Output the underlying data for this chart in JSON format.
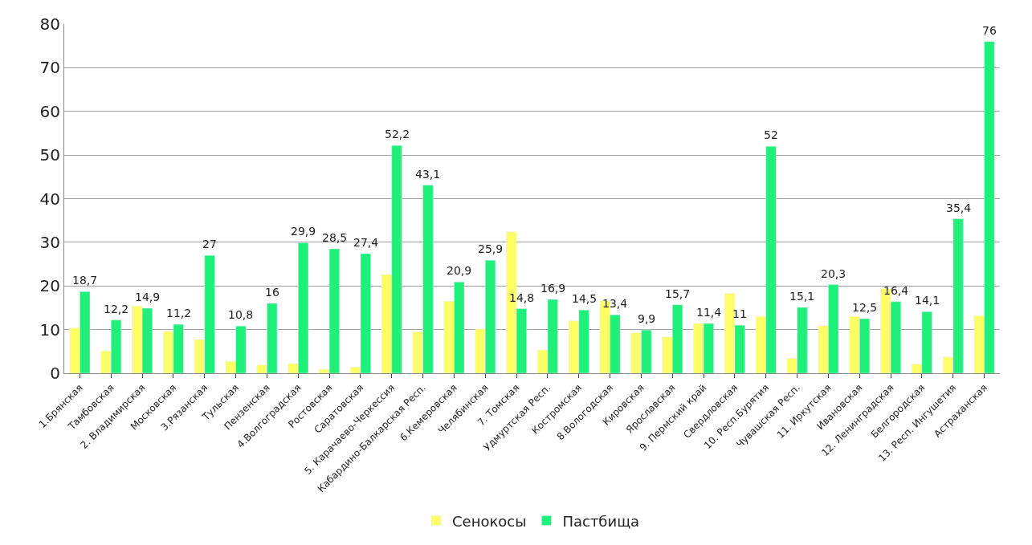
{
  "chart_data": {
    "type": "bar",
    "categories": [
      "1.Брянская",
      "Тамбовская",
      "2. Владимирская",
      "Московская",
      "3.Рязанская",
      "Тульская",
      "Пензенская",
      "4.Волгоградская",
      "Ростовская",
      "Саратовская",
      "5. Карачаево-Черкессия",
      "Кабардино-Балкарская Респ.",
      "6.Кемеровская",
      "Челябинская",
      "7. Томская",
      "Удмуртская Респ.",
      "Костромская",
      "8.Вологодская",
      "Кировская",
      "Ярославская",
      "9. Пермский край",
      "Свердловская",
      "10. Респ.Бурятия",
      "Чувашская Респ.",
      "11. Иркутская",
      "Ивановская",
      "12. Ленинградская",
      "Белгородская",
      "13. Респ. Ингушетия",
      "Астраханская"
    ],
    "series": [
      {
        "name": "Сенокосы",
        "color": "#ffff66",
        "values": [
          10.4,
          5.1,
          15.4,
          9.6,
          7.7,
          2.7,
          1.9,
          2.2,
          0.9,
          1.4,
          22.6,
          9.5,
          16.5,
          10.1,
          32.4,
          5.3,
          12.0,
          16.6,
          9.3,
          8.3,
          11.4,
          18.3,
          13.0,
          3.4,
          10.9,
          13.0,
          19.4,
          2.1,
          3.7,
          13.2
        ]
      },
      {
        "name": "Пастбища",
        "color": "#1ef07a",
        "values": [
          18.7,
          12.2,
          14.9,
          11.2,
          27,
          10.8,
          16,
          29.9,
          28.5,
          27.4,
          52.2,
          43.1,
          20.9,
          25.9,
          14.8,
          16.9,
          14.5,
          13.4,
          9.9,
          15.7,
          11.4,
          11,
          52,
          15.1,
          20.3,
          12.5,
          16.4,
          14.1,
          35.4,
          76
        ],
        "value_labels": [
          "18,7",
          "12,2",
          "14,9",
          "11,2",
          "27",
          "10,8",
          "16",
          "29,9",
          "28,5",
          "27,4",
          "52,2",
          "43,1",
          "20,9",
          "25,9",
          "14,8",
          "16,9",
          "14,5",
          "13,4",
          "9,9",
          "15,7",
          "11,4",
          "11",
          "52",
          "15,1",
          "20,3",
          "12,5",
          "16,4",
          "14,1",
          "35,4",
          "76"
        ]
      }
    ],
    "ylim": [
      0,
      80
    ],
    "yticks": [
      0,
      10,
      20,
      30,
      40,
      50,
      60,
      70,
      80
    ],
    "grid": "y",
    "legend": "bottom"
  }
}
